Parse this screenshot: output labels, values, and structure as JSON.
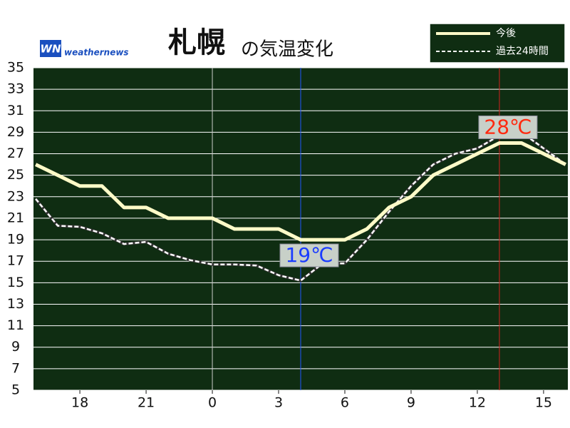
{
  "chart_data": {
    "type": "line",
    "title": "札幌",
    "subtitle": "の気温変化",
    "logo_mark": "WN",
    "logo_text": "weathernews",
    "x": [
      16,
      17,
      18,
      19,
      20,
      21,
      22,
      23,
      24,
      25,
      26,
      27,
      28,
      29,
      30,
      31,
      32,
      33,
      34,
      35,
      36,
      37,
      38,
      39,
      40
    ],
    "xlim": [
      15.9,
      40.1
    ],
    "xticks": [
      {
        "value": 18,
        "label": "18"
      },
      {
        "value": 21,
        "label": "21"
      },
      {
        "value": 24,
        "label": "0"
      },
      {
        "value": 27,
        "label": "3"
      },
      {
        "value": 30,
        "label": "6"
      },
      {
        "value": 33,
        "label": "9"
      },
      {
        "value": 36,
        "label": "12"
      },
      {
        "value": 39,
        "label": "15"
      }
    ],
    "ylim": [
      5,
      35
    ],
    "yticks": [
      5,
      7,
      9,
      11,
      13,
      15,
      17,
      19,
      21,
      23,
      25,
      27,
      29,
      31,
      33,
      35
    ],
    "grid": true,
    "series": [
      {
        "name": "今後",
        "color": "#fffbc8",
        "style": "solid",
        "values": [
          26,
          25,
          24,
          24,
          22,
          22,
          21,
          21,
          21,
          20,
          20,
          20,
          19,
          19,
          19,
          20,
          22,
          23,
          25,
          26,
          27,
          28,
          28,
          27,
          26
        ]
      },
      {
        "name": "過去24時間",
        "color": "#ffffff",
        "style": "dashed",
        "values": [
          22.8,
          20.3,
          20.2,
          19.6,
          18.6,
          18.8,
          17.7,
          17.1,
          16.7,
          16.7,
          16.6,
          15.7,
          15.2,
          16.8,
          16.8,
          19,
          21.6,
          24,
          26,
          27,
          27.5,
          28.7,
          29,
          27.5,
          26
        ]
      }
    ],
    "vlines": [
      {
        "x": 24,
        "color": "#cccccc"
      },
      {
        "x": 28,
        "color": "#2255ff"
      },
      {
        "x": 37,
        "color": "#d02020"
      }
    ],
    "annotations": [
      {
        "text": "19℃",
        "x": 28,
        "y": 19,
        "color": "#1a3cff"
      },
      {
        "text": "28℃",
        "x": 37,
        "y": 28,
        "color": "#ff2a10"
      }
    ],
    "legend": "top-right",
    "plot_background": "#0f2d12"
  }
}
